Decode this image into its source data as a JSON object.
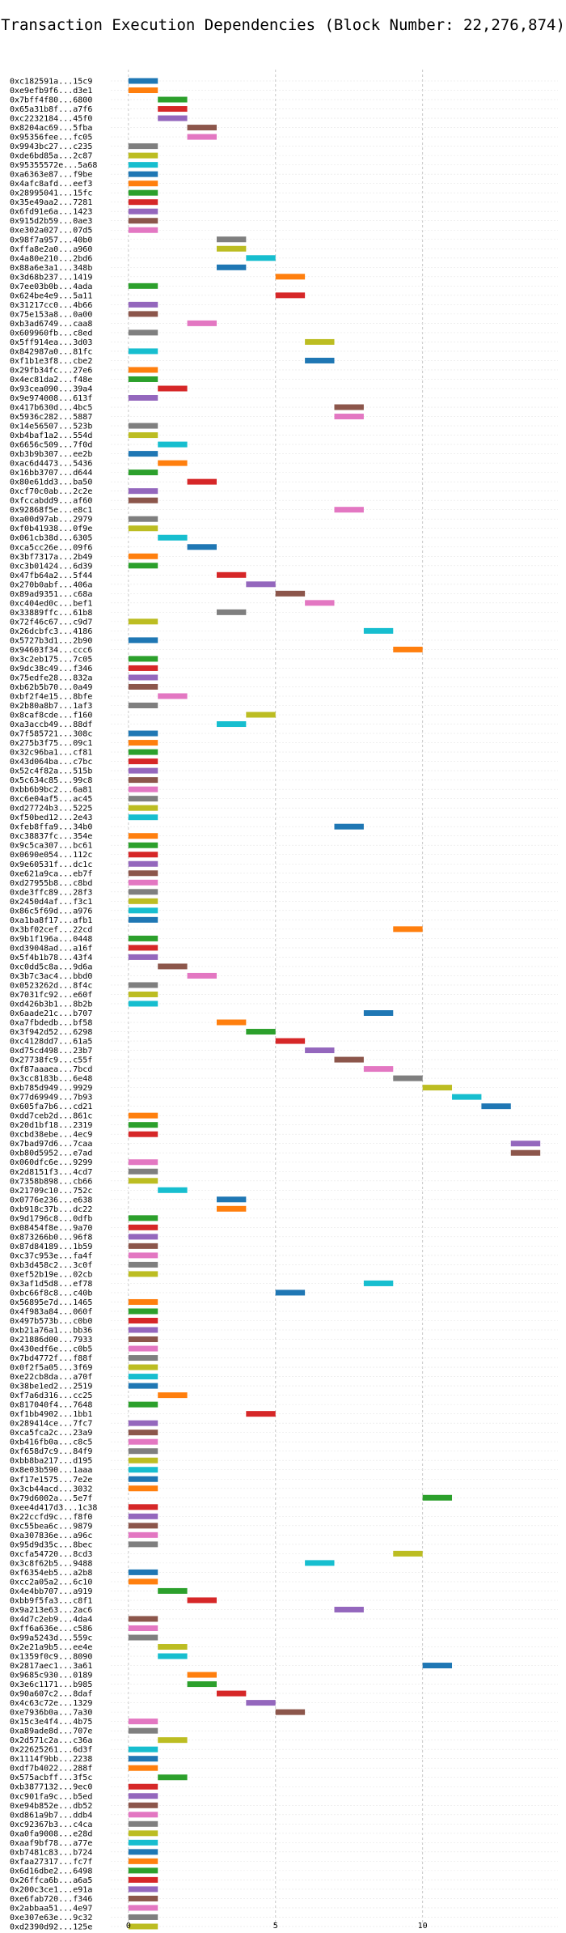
{
  "chart_data": {
    "type": "bar",
    "orientation": "horizontal",
    "title": "Transaction Execution Dependencies (Block Number: 22,276,874)",
    "xlabel": "",
    "ylabel": "",
    "xlim": [
      -0.6,
      14.6
    ],
    "xticks": [
      0,
      5,
      10
    ],
    "xtick_labels": [
      "0",
      "5",
      "10"
    ],
    "grid": "vertical dashed",
    "legend": "none",
    "bar_length": 1,
    "palette": [
      "#1f77b4",
      "#ff7f0e",
      "#2ca02c",
      "#d62728",
      "#9467bd",
      "#8c564b",
      "#e377c2",
      "#7f7f7f",
      "#bcbd22",
      "#17becf"
    ],
    "transactions": [
      {
        "label": "0xc182591a...15c9",
        "start": 0
      },
      {
        "label": "0xe9efb9f6...d3e1",
        "start": 0
      },
      {
        "label": "0x7bff4f80...6800",
        "start": 1
      },
      {
        "label": "0x65a31b8f...a7f6",
        "start": 1
      },
      {
        "label": "0xc2232184...45f0",
        "start": 1
      },
      {
        "label": "0x8204ac69...5fba",
        "start": 2
      },
      {
        "label": "0x95356fee...fc05",
        "start": 2
      },
      {
        "label": "0x9943bc27...c235",
        "start": 0
      },
      {
        "label": "0xde6bd85a...2c87",
        "start": 0
      },
      {
        "label": "0x95355572e...5a68",
        "start": 0
      },
      {
        "label": "0xa6363e87...f9be",
        "start": 0
      },
      {
        "label": "0x4afc8afd...eef3",
        "start": 0
      },
      {
        "label": "0x28995041...15fc",
        "start": 0
      },
      {
        "label": "0x35e49aa2...7281",
        "start": 0
      },
      {
        "label": "0x6fd91e6a...1423",
        "start": 0
      },
      {
        "label": "0x915d2b59...0ae3",
        "start": 0
      },
      {
        "label": "0xe302a027...07d5",
        "start": 0
      },
      {
        "label": "0x98f7a957...40b0",
        "start": 3
      },
      {
        "label": "0xffa8e2a0...a960",
        "start": 3
      },
      {
        "label": "0x4a80e210...2bd6",
        "start": 4
      },
      {
        "label": "0x88a6e3a1...348b",
        "start": 3
      },
      {
        "label": "0x3d68b237...1419",
        "start": 5
      },
      {
        "label": "0x7ee03b0b...4ada",
        "start": 0
      },
      {
        "label": "0x624be4e9...5a11",
        "start": 5
      },
      {
        "label": "0x31217cc0...4b66",
        "start": 0
      },
      {
        "label": "0x75e153a8...0a00",
        "start": 0
      },
      {
        "label": "0xb3ad6749...caa8",
        "start": 2
      },
      {
        "label": "0x609960fb...c8ed",
        "start": 0
      },
      {
        "label": "0x5ff914ea...3d03",
        "start": 6
      },
      {
        "label": "0x842987a0...81fc",
        "start": 0
      },
      {
        "label": "0xf1b1e3f8...cbe2",
        "start": 6
      },
      {
        "label": "0x29fb34fc...27e6",
        "start": 0
      },
      {
        "label": "0x4ec81da2...f48e",
        "start": 0
      },
      {
        "label": "0x93cea090...39a4",
        "start": 1
      },
      {
        "label": "0x9e974008...613f",
        "start": 0
      },
      {
        "label": "0x417b630d...4bc5",
        "start": 7
      },
      {
        "label": "0x5936c282...5887",
        "start": 7
      },
      {
        "label": "0x14e56507...523b",
        "start": 0
      },
      {
        "label": "0xb4baf1a2...554d",
        "start": 0
      },
      {
        "label": "0x6656c509...7f0d",
        "start": 1
      },
      {
        "label": "0xb3b9b307...ee2b",
        "start": 0
      },
      {
        "label": "0xac6d4473...5436",
        "start": 1
      },
      {
        "label": "0x16bb3707...d644",
        "start": 0
      },
      {
        "label": "0x80e61dd3...ba50",
        "start": 2
      },
      {
        "label": "0xcf70c0ab...2c2e",
        "start": 0
      },
      {
        "label": "0xfccabdd9...af60",
        "start": 0
      },
      {
        "label": "0x92868f5e...e8c1",
        "start": 7
      },
      {
        "label": "0xa00d97ab...2979",
        "start": 0
      },
      {
        "label": "0xf0b41938...0f9e",
        "start": 0
      },
      {
        "label": "0x061cb38d...6305",
        "start": 1
      },
      {
        "label": "0xca5cc26e...09f6",
        "start": 2
      },
      {
        "label": "0x3bf7317a...2b49",
        "start": 0
      },
      {
        "label": "0xc3b01424...6d39",
        "start": 0
      },
      {
        "label": "0x47fb64a2...5f44",
        "start": 3
      },
      {
        "label": "0x270b0abf...406a",
        "start": 4
      },
      {
        "label": "0x89ad9351...c68a",
        "start": 5
      },
      {
        "label": "0xc404ed0c...bef1",
        "start": 6
      },
      {
        "label": "0x33889ffc...61b8",
        "start": 3
      },
      {
        "label": "0x72f46c67...c9d7",
        "start": 0
      },
      {
        "label": "0x26dcbfc3...4186",
        "start": 8
      },
      {
        "label": "0x5727b3d1...2b90",
        "start": 0
      },
      {
        "label": "0x94603f34...ccc6",
        "start": 9
      },
      {
        "label": "0x3c2eb175...7c05",
        "start": 0
      },
      {
        "label": "0x9dc38c49...f346",
        "start": 0
      },
      {
        "label": "0x75edfe28...832a",
        "start": 0
      },
      {
        "label": "0xb62b5b70...0a49",
        "start": 0
      },
      {
        "label": "0xbf2f4e15...8bfe",
        "start": 1
      },
      {
        "label": "0x2b80a8b7...1af3",
        "start": 0
      },
      {
        "label": "0x8caf8cde...f160",
        "start": 4
      },
      {
        "label": "0xa3accb49...88df",
        "start": 3
      },
      {
        "label": "0x7f585721...308c",
        "start": 0
      },
      {
        "label": "0x275b3f75...09c1",
        "start": 0
      },
      {
        "label": "0x32c96ba1...cf81",
        "start": 0
      },
      {
        "label": "0x43d064ba...c7bc",
        "start": 0
      },
      {
        "label": "0x52c4f82a...515b",
        "start": 0
      },
      {
        "label": "0x5c634c85...99c8",
        "start": 0
      },
      {
        "label": "0xbb6b9bc2...6a81",
        "start": 0
      },
      {
        "label": "0xc6e04af5...ac45",
        "start": 0
      },
      {
        "label": "0xd27724b3...5225",
        "start": 0
      },
      {
        "label": "0xf50bed12...2e43",
        "start": 0
      },
      {
        "label": "0xfeb8ffa9...34b0",
        "start": 7
      },
      {
        "label": "0xc38837fc...354e",
        "start": 0
      },
      {
        "label": "0x9c5ca307...bc61",
        "start": 0
      },
      {
        "label": "0x0690e054...112c",
        "start": 0
      },
      {
        "label": "0x9e60531f...dc1c",
        "start": 0
      },
      {
        "label": "0xe621a9ca...eb7f",
        "start": 0
      },
      {
        "label": "0xd27955b8...c8bd",
        "start": 0
      },
      {
        "label": "0xde3ffc89...28f3",
        "start": 0
      },
      {
        "label": "0x2450d4af...f3c1",
        "start": 0
      },
      {
        "label": "0x86c5f69d...a976",
        "start": 0
      },
      {
        "label": "0xa1ba8f17...afb1",
        "start": 0
      },
      {
        "label": "0x3bf02cef...22cd",
        "start": 9
      },
      {
        "label": "0x9b1f196a...0448",
        "start": 0
      },
      {
        "label": "0xd39048ad...a16f",
        "start": 0
      },
      {
        "label": "0x5f4b1b78...43f4",
        "start": 0
      },
      {
        "label": "0xc0dd5c8a...9d6a",
        "start": 1
      },
      {
        "label": "0x3b7c3ac4...bbd0",
        "start": 2
      },
      {
        "label": "0x0523262d...8f4c",
        "start": 0
      },
      {
        "label": "0x7031fc92...e60f",
        "start": 0
      },
      {
        "label": "0xd426b3b1...8b2b",
        "start": 0
      },
      {
        "label": "0x6aade21c...b707",
        "start": 8
      },
      {
        "label": "0xa7fbdedb...bf58",
        "start": 3
      },
      {
        "label": "0x3f942d52...6298",
        "start": 4
      },
      {
        "label": "0xc4128dd7...61a5",
        "start": 5
      },
      {
        "label": "0xd75cd498...23b7",
        "start": 6
      },
      {
        "label": "0x27738fc9...c55f",
        "start": 7
      },
      {
        "label": "0xf87aaaea...7bcd",
        "start": 8
      },
      {
        "label": "0x3cc8183b...6e48",
        "start": 9
      },
      {
        "label": "0xb785d949...9929",
        "start": 10
      },
      {
        "label": "0x77d69949...7b93",
        "start": 11
      },
      {
        "label": "0x605fa7b6...cd21",
        "start": 12
      },
      {
        "label": "0xdd7ceb2d...861c",
        "start": 0
      },
      {
        "label": "0x20d1bf18...2319",
        "start": 0
      },
      {
        "label": "0xcbd38ebe...4ec9",
        "start": 0
      },
      {
        "label": "0x7bad97d6...7caa",
        "start": 13
      },
      {
        "label": "0xb80d5952...e7ad",
        "start": 13
      },
      {
        "label": "0x060dfc6e...9299",
        "start": 0
      },
      {
        "label": "0x2d8151f3...4cd7",
        "start": 0
      },
      {
        "label": "0x7358b898...cb66",
        "start": 0
      },
      {
        "label": "0x21709c10...752c",
        "start": 1
      },
      {
        "label": "0x0776e236...e638",
        "start": 3
      },
      {
        "label": "0xb918c37b...dc22",
        "start": 3
      },
      {
        "label": "0x9d1796c8...0dfb",
        "start": 0
      },
      {
        "label": "0x08454f8e...9a70",
        "start": 0
      },
      {
        "label": "0x873266b0...96f8",
        "start": 0
      },
      {
        "label": "0x87d84189...1b59",
        "start": 0
      },
      {
        "label": "0xc37c953e...fa4f",
        "start": 0
      },
      {
        "label": "0xb3d458c2...3c0f",
        "start": 0
      },
      {
        "label": "0xef52b19e...02cb",
        "start": 0
      },
      {
        "label": "0x3af1d5d8...ef78",
        "start": 8
      },
      {
        "label": "0xbc66f8c8...c40b",
        "start": 5
      },
      {
        "label": "0x56895e7d...1465",
        "start": 0
      },
      {
        "label": "0x4f983a84...060f",
        "start": 0
      },
      {
        "label": "0x497b573b...c0b0",
        "start": 0
      },
      {
        "label": "0xb21a76a1...bb36",
        "start": 0
      },
      {
        "label": "0x21886d00...7933",
        "start": 0
      },
      {
        "label": "0x430edf6e...c0b5",
        "start": 0
      },
      {
        "label": "0x7bd4772f...f88f",
        "start": 0
      },
      {
        "label": "0x0f2f5a05...3f69",
        "start": 0
      },
      {
        "label": "0xe22cb8da...a70f",
        "start": 0
      },
      {
        "label": "0x38be1ed2...2519",
        "start": 0
      },
      {
        "label": "0xf7a6d316...cc25",
        "start": 1
      },
      {
        "label": "0x817040f4...7648",
        "start": 0
      },
      {
        "label": "0xf1bb4902...1bb1",
        "start": 4
      },
      {
        "label": "0x289414ce...7fc7",
        "start": 0
      },
      {
        "label": "0xca5fca2c...23a9",
        "start": 0
      },
      {
        "label": "0xb416fb0a...c8c5",
        "start": 0
      },
      {
        "label": "0xf658d7c9...84f9",
        "start": 0
      },
      {
        "label": "0xbb8ba217...d195",
        "start": 0
      },
      {
        "label": "0x8e03b590...1aaa",
        "start": 0
      },
      {
        "label": "0xf17e1575...7e2e",
        "start": 0
      },
      {
        "label": "0x3cb44acd...3032",
        "start": 0
      },
      {
        "label": "0x79d6002a...5e7f",
        "start": 10
      },
      {
        "label": "0xee4d417d3...1c38",
        "start": 0
      },
      {
        "label": "0x22ccfd9c...f8f0",
        "start": 0
      },
      {
        "label": "0xc55bea6c...9879",
        "start": 0
      },
      {
        "label": "0xa307836e...a96c",
        "start": 0
      },
      {
        "label": "0x95d9d35c...8bec",
        "start": 0
      },
      {
        "label": "0xcfa54720...8cd3",
        "start": 9
      },
      {
        "label": "0x3c8f62b5...9488",
        "start": 6
      },
      {
        "label": "0xf6354eb5...a2b8",
        "start": 0
      },
      {
        "label": "0xcc2a05a2...6c10",
        "start": 0
      },
      {
        "label": "0x4e4bb707...a919",
        "start": 1
      },
      {
        "label": "0xbb9f5fa3...c8f1",
        "start": 2
      },
      {
        "label": "0x9a213e63...2ac6",
        "start": 7
      },
      {
        "label": "0x4d7c2eb9...4da4",
        "start": 0
      },
      {
        "label": "0xff6a636e...c586",
        "start": 0
      },
      {
        "label": "0x99a5243d...559c",
        "start": 0
      },
      {
        "label": "0x2e21a9b5...ee4e",
        "start": 1
      },
      {
        "label": "0x1359f0c9...8090",
        "start": 1
      },
      {
        "label": "0x2817aec1...3a61",
        "start": 10
      },
      {
        "label": "0x9685c930...0189",
        "start": 2
      },
      {
        "label": "0x3e6c1171...b985",
        "start": 2
      },
      {
        "label": "0x90a607c2...8daf",
        "start": 3
      },
      {
        "label": "0x4c63c72e...1329",
        "start": 4
      },
      {
        "label": "0xe7936b0a...7a30",
        "start": 5
      },
      {
        "label": "0x15c3e4f4...4b75",
        "start": 0
      },
      {
        "label": "0xa89ade8d...707e",
        "start": 0
      },
      {
        "label": "0x2d571c2a...c36a",
        "start": 1
      },
      {
        "label": "0x22625261...6d3f",
        "start": 0
      },
      {
        "label": "0x1114f9bb...2238",
        "start": 0
      },
      {
        "label": "0xdf7b4022...288f",
        "start": 0
      },
      {
        "label": "0x575acbff...3f5c",
        "start": 1
      },
      {
        "label": "0xb3877132...9ec0",
        "start": 0
      },
      {
        "label": "0xc901fa9c...b5ed",
        "start": 0
      },
      {
        "label": "0xe94b852e...db52",
        "start": 0
      },
      {
        "label": "0xd861a9b7...ddb4",
        "start": 0
      },
      {
        "label": "0xc92367b3...c4ca",
        "start": 0
      },
      {
        "label": "0xa0fa9008...e28d",
        "start": 0
      },
      {
        "label": "0xaaf9bf78...a77e",
        "start": 0
      },
      {
        "label": "0xb7481c83...b724",
        "start": 0
      },
      {
        "label": "0xfaa27317...fc7f",
        "start": 0
      },
      {
        "label": "0x6d16dbe2...6498",
        "start": 0
      },
      {
        "label": "0x26ffca6b...a6a5",
        "start": 0
      },
      {
        "label": "0x200c3ce1...e91a",
        "start": 0
      },
      {
        "label": "0xe6fab720...f346",
        "start": 0
      },
      {
        "label": "0x2abbaa51...4e97",
        "start": 0
      },
      {
        "label": "0xe307e63e...9c32",
        "start": 0
      },
      {
        "label": "0xd2390d92...125e",
        "start": 0
      }
    ]
  }
}
